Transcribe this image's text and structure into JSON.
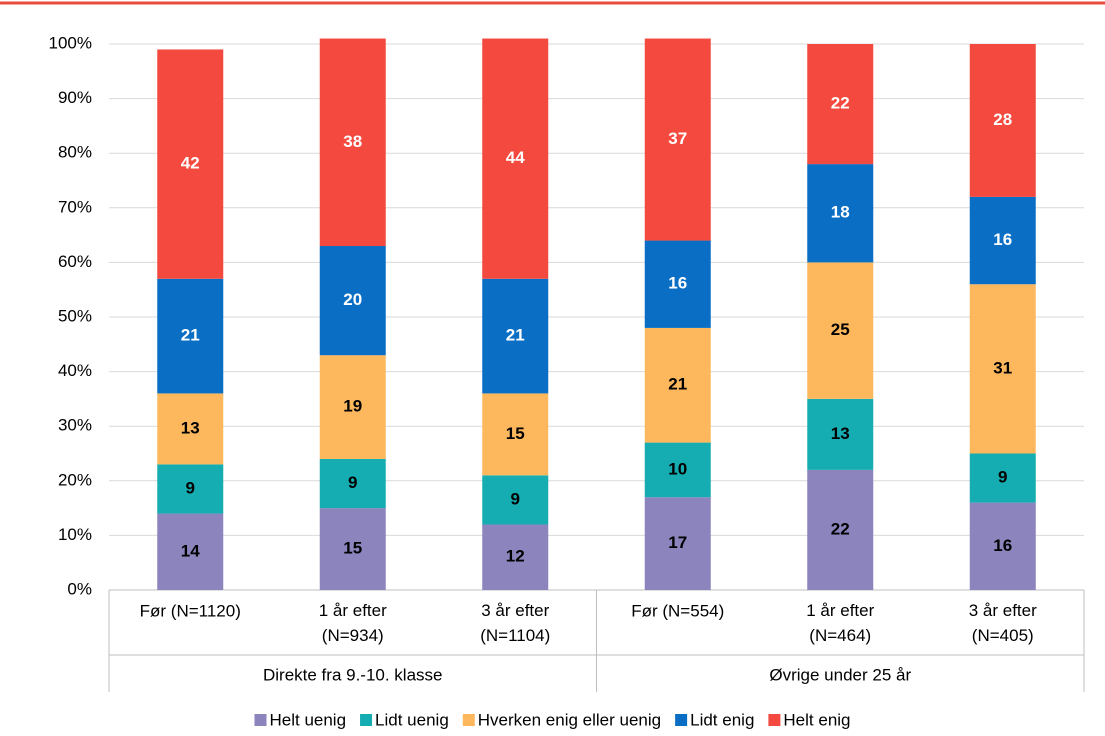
{
  "chart_data": {
    "type": "stacked_bar",
    "groups": [
      {
        "name": "Direkte fra 9.-10. klasse",
        "categories": [
          "Før (N=1120)",
          "1 år efter\n(N=934)",
          "3 år efter\n(N=1104)"
        ]
      },
      {
        "name": "Øvrige under 25 år",
        "categories": [
          "Før (N=554)",
          "1 år efter\n(N=464)",
          "3 år efter\n(N=405)"
        ]
      }
    ],
    "series": [
      {
        "name": "Helt uenig",
        "color": "#8b84bd",
        "label_color": "#000000",
        "values": [
          14,
          15,
          12,
          17,
          22,
          16
        ]
      },
      {
        "name": "Lidt uenig",
        "color": "#15adb2",
        "label_color": "#000000",
        "values": [
          9,
          9,
          9,
          10,
          13,
          9
        ]
      },
      {
        "name": "Hverken enig eller uenig",
        "color": "#fdb85e",
        "label_color": "#000000",
        "values": [
          13,
          19,
          15,
          21,
          25,
          31
        ]
      },
      {
        "name": "Lidt enig",
        "color": "#0a6fc4",
        "label_color": "#ffffff",
        "values": [
          21,
          20,
          21,
          16,
          18,
          16
        ]
      },
      {
        "name": "Helt enig",
        "color": "#f4493e",
        "label_color": "#ffffff",
        "values": [
          42,
          38,
          44,
          37,
          22,
          28
        ]
      }
    ],
    "ylim": [
      0,
      100
    ],
    "yticks": [
      {
        "value": 0,
        "label": "0%"
      },
      {
        "value": 10,
        "label": "10%"
      },
      {
        "value": 20,
        "label": "20%"
      },
      {
        "value": 30,
        "label": "30%"
      },
      {
        "value": 40,
        "label": "40%"
      },
      {
        "value": 50,
        "label": "50%"
      },
      {
        "value": 60,
        "label": "60%"
      },
      {
        "value": 70,
        "label": "70%"
      },
      {
        "value": 80,
        "label": "80%"
      },
      {
        "value": 90,
        "label": "90%"
      },
      {
        "value": 100,
        "label": "100%"
      }
    ],
    "grid": true,
    "legend": "bottom"
  }
}
